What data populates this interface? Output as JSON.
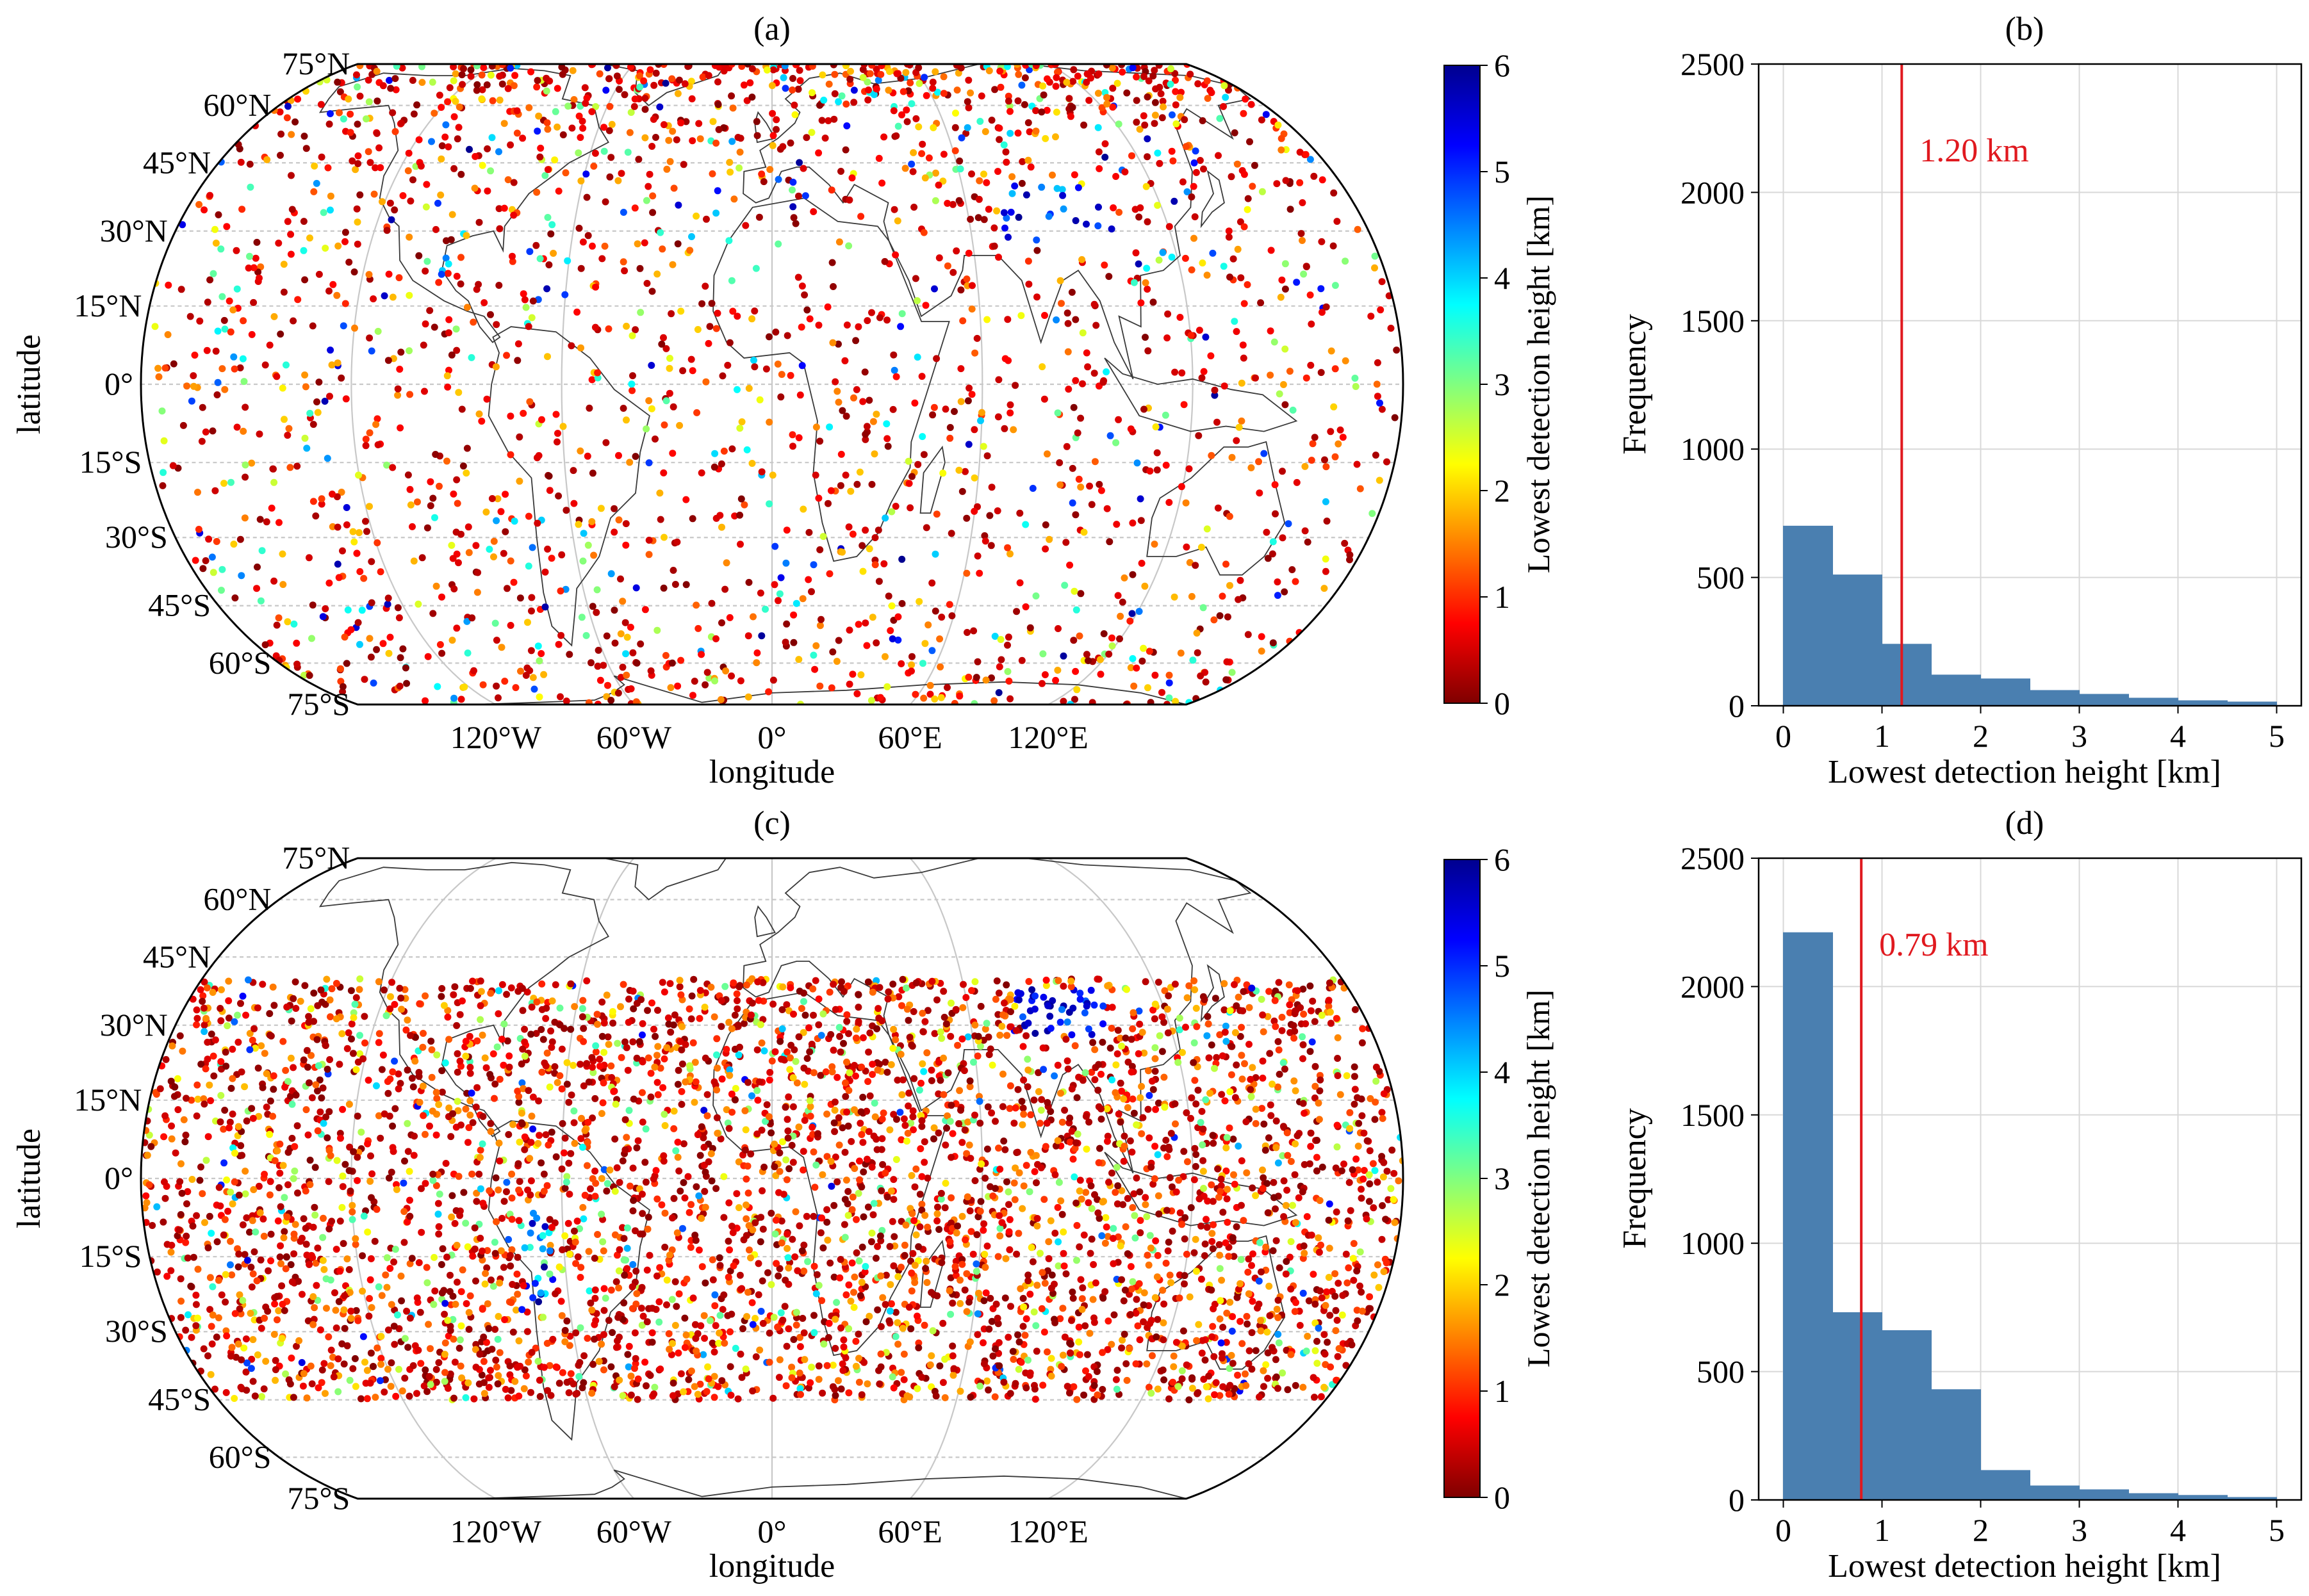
{
  "colors": {
    "bar": "#4a7fb0",
    "bar_edge": "#3b6e9e",
    "marker_line": "#e0191f",
    "grid": "#d8d8d8",
    "map_grid": "#c8c8c8",
    "coast": "#3a3a3a",
    "colormap": [
      "#7f0000",
      "#ff0000",
      "#ff8000",
      "#ffff00",
      "#80ff80",
      "#00ffff",
      "#0080ff",
      "#0000ff",
      "#00008f"
    ]
  },
  "chart_data": [
    {
      "id": "a",
      "type": "scatter",
      "title": "(a)",
      "xlabel": "longitude",
      "ylabel": "latitude",
      "projection": "Eckert IV (world map)",
      "lat_tick_labels": [
        "75°N",
        "60°N",
        "45°N",
        "30°N",
        "15°N",
        "0°",
        "15°S",
        "30°S",
        "45°S",
        "60°S",
        "75°S"
      ],
      "lon_tick_labels": [
        "120°W",
        "60°W",
        "0°",
        "60°E",
        "120°E"
      ],
      "point_distribution": "global, 75°S–75°N, about 2300 occultation points, mostly 0–1 km (dark red), denser in southern ocean",
      "point_count_estimate": 2300,
      "lat_range": [
        -75,
        75
      ],
      "colorbar": {
        "label": "Lowest detection height [km]",
        "range": [
          0,
          6
        ],
        "ticks": [
          "0",
          "1",
          "2",
          "3",
          "4",
          "5",
          "6"
        ]
      }
    },
    {
      "id": "b",
      "type": "bar",
      "title": "(b)",
      "xlabel": "Lowest detection height [km]",
      "ylabel": "Frequency",
      "bin_width": 0.5,
      "bin_edges": [
        0,
        0.5,
        1,
        1.5,
        2,
        2.5,
        3,
        3.5,
        4,
        4.5,
        5
      ],
      "values": [
        700,
        510,
        240,
        120,
        105,
        60,
        45,
        30,
        20,
        15
      ],
      "xlim": [
        -0.25,
        5.25
      ],
      "ylim": [
        0,
        2500
      ],
      "xticks": [
        "0",
        "1",
        "2",
        "3",
        "4",
        "5"
      ],
      "yticks": [
        "0",
        "500",
        "1000",
        "1500",
        "2000",
        "2500"
      ],
      "grid": true,
      "vline": {
        "x": 1.2,
        "label": "1.20 km"
      }
    },
    {
      "id": "c",
      "type": "scatter",
      "title": "(c)",
      "xlabel": "longitude",
      "ylabel": "latitude",
      "projection": "Eckert IV (world map)",
      "lat_tick_labels": [
        "75°N",
        "60°N",
        "45°N",
        "30°N",
        "15°N",
        "0°",
        "15°S",
        "30°S",
        "45°S",
        "60°S",
        "75°S"
      ],
      "lon_tick_labels": [
        "120°W",
        "60°W",
        "0°",
        "60°E",
        "120°E"
      ],
      "point_distribution": "tropics and subtropics, 45°S–40°N, about 4300 points, dark red to orange, blue cluster over Tibetan Plateau and Andes",
      "point_count_estimate": 4300,
      "lat_range": [
        -45,
        40
      ],
      "colorbar": {
        "label": "Lowest detection height [km]",
        "range": [
          0,
          6
        ],
        "ticks": [
          "0",
          "1",
          "2",
          "3",
          "4",
          "5",
          "6"
        ]
      }
    },
    {
      "id": "d",
      "type": "bar",
      "title": "(d)",
      "xlabel": "Lowest detection height [km]",
      "ylabel": "Frequency",
      "bin_width": 0.5,
      "bin_edges": [
        0,
        0.5,
        1,
        1.5,
        2,
        2.5,
        3,
        3.5,
        4,
        4.5,
        5
      ],
      "values": [
        2210,
        730,
        660,
        430,
        115,
        55,
        40,
        25,
        18,
        10
      ],
      "xlim": [
        -0.25,
        5.25
      ],
      "ylim": [
        0,
        2500
      ],
      "xticks": [
        "0",
        "1",
        "2",
        "3",
        "4",
        "5"
      ],
      "yticks": [
        "0",
        "500",
        "1000",
        "1500",
        "2000",
        "2500"
      ],
      "grid": true,
      "vline": {
        "x": 0.79,
        "label": "0.79 km"
      }
    }
  ]
}
